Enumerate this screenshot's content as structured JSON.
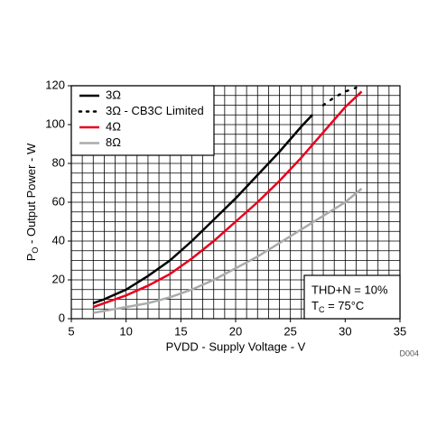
{
  "chart_data": {
    "type": "line",
    "xlabel": "PVDD - Supply Voltage - V",
    "ylabel": {
      "symbol": "P",
      "subscript": "O",
      "text": " - Output Power - W"
    },
    "code": "D004",
    "annotation": {
      "line1": "THD+N = 10%",
      "symbol": "T",
      "subscript": "C",
      "text": " = 75°C"
    },
    "xlim": [
      5,
      35
    ],
    "ylim": [
      0,
      120
    ],
    "xticks": [
      5,
      10,
      15,
      20,
      25,
      30,
      35
    ],
    "yticks": [
      0,
      20,
      40,
      60,
      80,
      100,
      120
    ],
    "xgrid": [
      5,
      6,
      7,
      8,
      9,
      10,
      11,
      12,
      13,
      14,
      15,
      16,
      17,
      18,
      19,
      20,
      21,
      22,
      23,
      24,
      25,
      26,
      27,
      28,
      29,
      30,
      31,
      32,
      33,
      34,
      35
    ],
    "ygrid": [
      0,
      5,
      10,
      15,
      20,
      25,
      30,
      35,
      40,
      45,
      50,
      55,
      60,
      65,
      70,
      75,
      80,
      85,
      90,
      95,
      100,
      105,
      110,
      115,
      120
    ],
    "grid": true,
    "legend": "upper left",
    "series": [
      {
        "name": "3Ω",
        "color": "#000000",
        "style": "solid",
        "x": [
          7,
          8,
          10,
          12,
          14,
          16,
          18,
          20,
          22,
          24,
          26,
          27
        ],
        "values": [
          8,
          10,
          15,
          22,
          30,
          40,
          51,
          62,
          74,
          86,
          99,
          105
        ]
      },
      {
        "name": "3Ω - CB3C Limited",
        "color": "#000000",
        "style": "dotted",
        "x": [
          28,
          29,
          30,
          31
        ],
        "values": [
          110,
          114,
          117,
          119
        ]
      },
      {
        "name": "4Ω",
        "color": "#e8001c",
        "style": "solid",
        "x": [
          7,
          8,
          10,
          12,
          14,
          16,
          18,
          20,
          22,
          24,
          26,
          28,
          30,
          31.5
        ],
        "values": [
          6,
          8,
          12,
          17,
          23,
          31,
          40,
          50,
          60,
          71,
          83,
          96,
          109,
          117
        ]
      },
      {
        "name": "8Ω",
        "color": "#aaaaaa",
        "style": "solid",
        "x": [
          7,
          8,
          10,
          12,
          14,
          16,
          18,
          20,
          22,
          24,
          26,
          28,
          30,
          31.5
        ],
        "values": [
          3,
          4,
          6,
          8,
          11,
          15,
          20,
          26,
          32,
          39,
          46,
          53,
          60,
          67
        ]
      }
    ]
  }
}
